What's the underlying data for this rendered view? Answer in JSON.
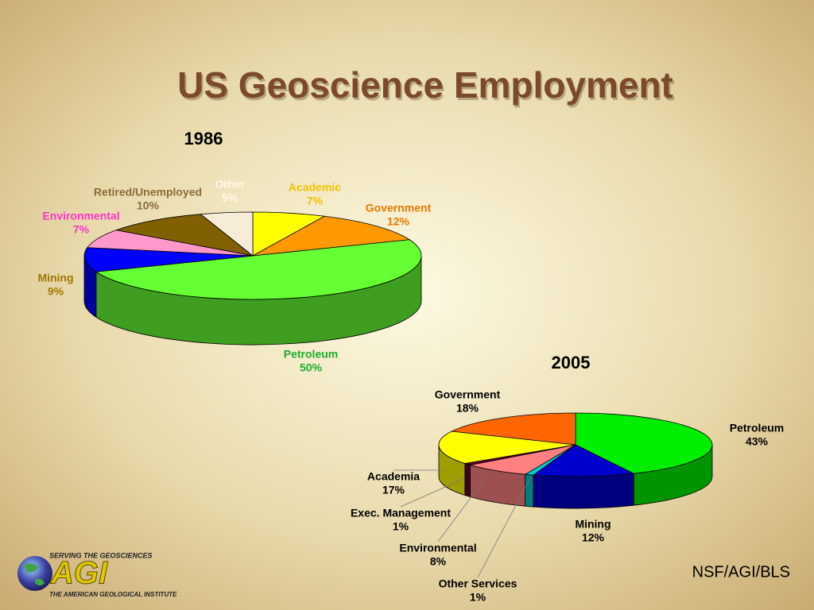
{
  "title": "US Geoscience Employment",
  "chart_data": [
    {
      "type": "pie",
      "title": "1986",
      "categories": [
        "Academic",
        "Government",
        "Petroleum",
        "Mining",
        "Environmental",
        "Retired/Unemployed",
        "Other"
      ],
      "values": [
        7,
        12,
        50,
        9,
        7,
        10,
        5
      ],
      "value_labels": [
        "7%",
        "12%",
        "50%",
        "9%",
        "7%",
        "10%",
        "5%"
      ],
      "colors": [
        "#ffff00",
        "#ff9900",
        "#66ff33",
        "#0000ff",
        "#ff99cc",
        "#806000",
        "#f7ecd8"
      ],
      "label_colors": [
        "#f2c200",
        "#e07b00",
        "#1faa2a",
        "#a07800",
        "#ff33cc",
        "#8b6b3a",
        "#fff8e8"
      ]
    },
    {
      "type": "pie",
      "title": "2005",
      "categories": [
        "Petroleum",
        "Mining",
        "Other Services",
        "Environmental",
        "Exec. Management",
        "Academia",
        "Government"
      ],
      "values": [
        43,
        12,
        1,
        8,
        1,
        17,
        18
      ],
      "value_labels": [
        "43%",
        "12%",
        "1%",
        "8%",
        "1%",
        "17%",
        "18%"
      ],
      "colors": [
        "#00ee00",
        "#0000cc",
        "#00cccc",
        "#ff8080",
        "#660033",
        "#ffff00",
        "#ff6600"
      ],
      "label_colors": [
        "#000000",
        "#000000",
        "#000000",
        "#000000",
        "#000000",
        "#000000",
        "#000000"
      ]
    }
  ],
  "source": "NSF/AGI/BLS",
  "logo": {
    "top": "SERVING THE GEOSCIENCES",
    "name": "AGI",
    "bottom": "THE AMERICAN GEOLOGICAL INSTITUTE"
  }
}
